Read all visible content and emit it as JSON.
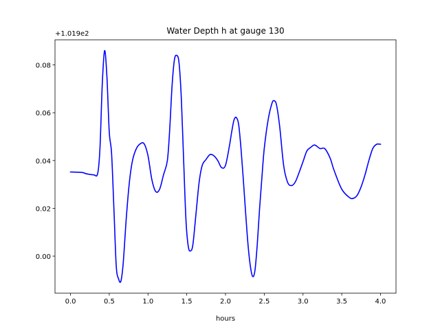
{
  "chart_data": {
    "type": "line",
    "title": "Water Depth h at gauge 130",
    "xlabel": "hours",
    "ylabel": "",
    "y_offset_label": "+1.019e2",
    "y_offset": 101.9,
    "xlim": [
      -0.2,
      4.2
    ],
    "ylim": [
      -0.0155,
      0.0905
    ],
    "x_ticks": [
      0.0,
      0.5,
      1.0,
      1.5,
      2.0,
      2.5,
      3.0,
      3.5,
      4.0
    ],
    "x_tick_labels": [
      "0.0",
      "0.5",
      "1.0",
      "1.5",
      "2.0",
      "2.5",
      "3.0",
      "3.5",
      "4.0"
    ],
    "y_ticks": [
      0.0,
      0.02,
      0.04,
      0.06,
      0.08
    ],
    "y_tick_labels": [
      "0.00",
      "0.02",
      "0.04",
      "0.06",
      "0.08"
    ],
    "grid": false,
    "series": [
      {
        "color": "#0000ff",
        "x": [
          0.0,
          0.15,
          0.2,
          0.3,
          0.35,
          0.38,
          0.41,
          0.44,
          0.47,
          0.5,
          0.53,
          0.56,
          0.59,
          0.62,
          0.65,
          0.68,
          0.72,
          0.76,
          0.8,
          0.85,
          0.9,
          0.95,
          1.0,
          1.05,
          1.1,
          1.15,
          1.2,
          1.25,
          1.28,
          1.31,
          1.34,
          1.37,
          1.4,
          1.43,
          1.46,
          1.49,
          1.52,
          1.55,
          1.58,
          1.62,
          1.66,
          1.7,
          1.75,
          1.8,
          1.85,
          1.9,
          1.95,
          2.0,
          2.05,
          2.08,
          2.11,
          2.14,
          2.17,
          2.2,
          2.23,
          2.26,
          2.29,
          2.32,
          2.35,
          2.38,
          2.41,
          2.44,
          2.47,
          2.5,
          2.55,
          2.6,
          2.63,
          2.66,
          2.7,
          2.75,
          2.8,
          2.85,
          2.9,
          2.95,
          3.0,
          3.05,
          3.1,
          3.15,
          3.22,
          3.28,
          3.35,
          3.4,
          3.5,
          3.6,
          3.65,
          3.7,
          3.75,
          3.8,
          3.85,
          3.9,
          3.95,
          4.0
        ],
        "y": [
          0.0352,
          0.035,
          0.0345,
          0.034,
          0.0345,
          0.045,
          0.072,
          0.086,
          0.075,
          0.052,
          0.043,
          0.02,
          -0.004,
          -0.0095,
          -0.0105,
          -0.003,
          0.016,
          0.031,
          0.04,
          0.045,
          0.047,
          0.047,
          0.042,
          0.032,
          0.027,
          0.028,
          0.034,
          0.04,
          0.053,
          0.071,
          0.082,
          0.084,
          0.081,
          0.066,
          0.04,
          0.015,
          0.004,
          0.0022,
          0.005,
          0.018,
          0.031,
          0.038,
          0.0405,
          0.0425,
          0.042,
          0.04,
          0.037,
          0.038,
          0.046,
          0.052,
          0.057,
          0.058,
          0.055,
          0.045,
          0.032,
          0.018,
          0.005,
          -0.004,
          -0.0085,
          -0.006,
          0.005,
          0.02,
          0.033,
          0.045,
          0.057,
          0.064,
          0.065,
          0.063,
          0.054,
          0.038,
          0.031,
          0.0295,
          0.031,
          0.035,
          0.0395,
          0.044,
          0.0455,
          0.0465,
          0.045,
          0.045,
          0.041,
          0.036,
          0.028,
          0.0245,
          0.0242,
          0.0255,
          0.029,
          0.034,
          0.04,
          0.045,
          0.0468,
          0.0468
        ]
      }
    ]
  }
}
